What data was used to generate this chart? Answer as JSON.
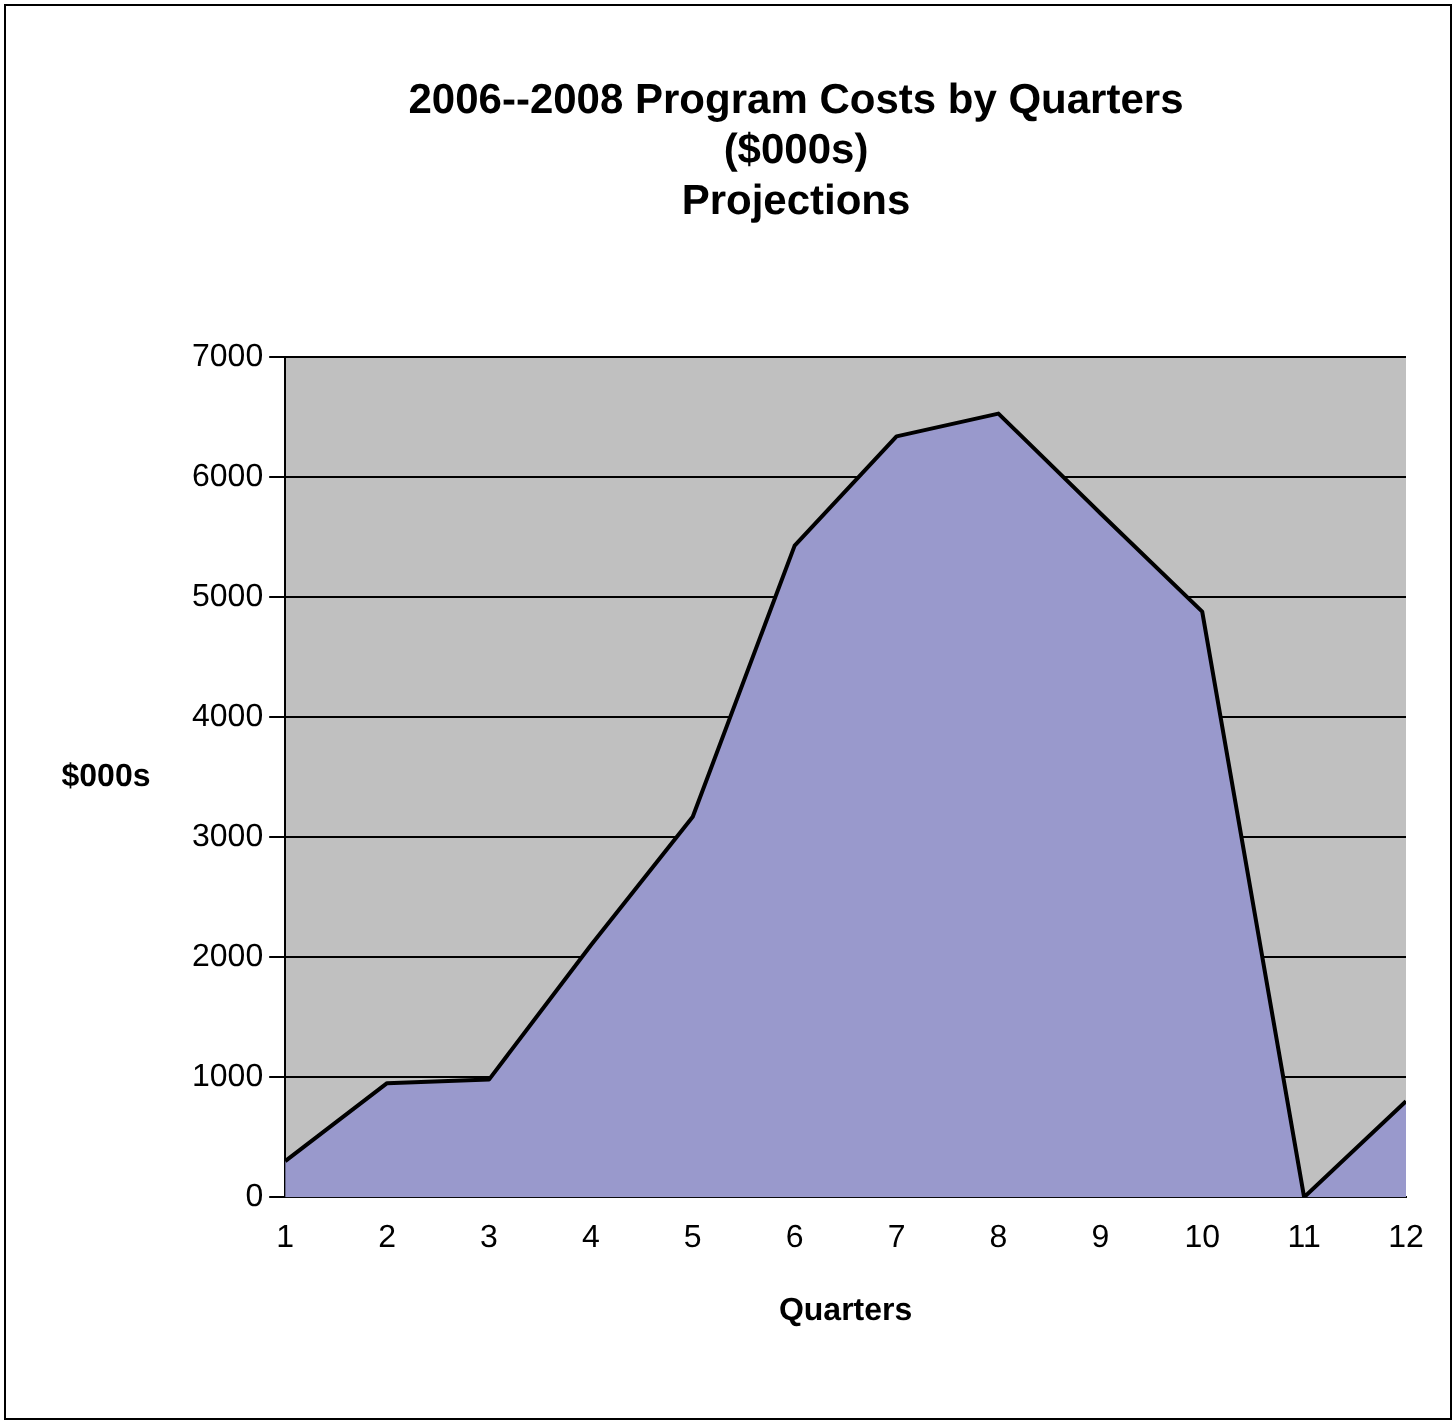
{
  "chart_data": {
    "type": "area",
    "title": "2006--2008 Program Costs by Quarters\n($000s)\nProjections",
    "xlabel": "Quarters",
    "ylabel": "$000s",
    "x": [
      1,
      2,
      3,
      4,
      5,
      6,
      7,
      8,
      9,
      10,
      11,
      12
    ],
    "values": [
      300,
      950,
      980,
      2100,
      3170,
      5430,
      6340,
      6530,
      5700,
      4880,
      0,
      800
    ],
    "color": "#9999cc",
    "xlim": [
      1,
      12
    ],
    "xticks": [
      1,
      2,
      3,
      4,
      5,
      6,
      7,
      8,
      9,
      10,
      11,
      12
    ],
    "ylim": [
      0,
      7000
    ],
    "yticks": [
      0,
      1000,
      2000,
      3000,
      4000,
      5000,
      6000,
      7000
    ],
    "grid": "y"
  }
}
